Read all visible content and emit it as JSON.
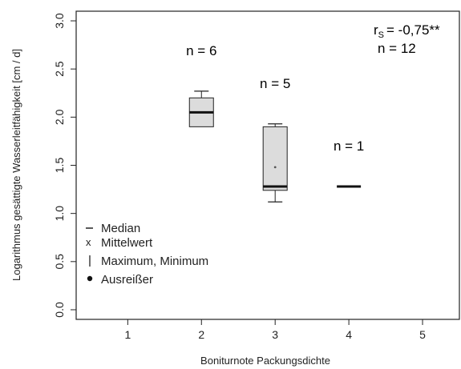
{
  "chart_data": {
    "type": "box",
    "xlabel": "Boniturnote Packungsdichte",
    "ylabel": "Logarithmus gesättigte Wasserleitfähigkeit [cm / d]",
    "xlim": [
      0.3,
      5.5
    ],
    "ylim": [
      -0.1,
      3.1
    ],
    "x_ticks": [
      "1",
      "2",
      "3",
      "4",
      "5"
    ],
    "y_ticks": [
      "0.0",
      "0.5",
      "1.0",
      "1.5",
      "2.0",
      "2.5",
      "3.0"
    ],
    "boxes": [
      {
        "x": 2,
        "min": 1.9,
        "q1": 1.9,
        "median": 2.05,
        "q3": 2.2,
        "max": 2.27,
        "mean": null,
        "n_label": "n = 6"
      },
      {
        "x": 3,
        "min": 1.12,
        "q1": 1.24,
        "median": 1.28,
        "q3": 1.9,
        "max": 1.93,
        "mean": 1.48,
        "n_label": "n = 5"
      },
      {
        "x": 4,
        "min": 1.28,
        "q1": 1.28,
        "median": 1.28,
        "q3": 1.28,
        "max": 1.28,
        "mean": null,
        "n_label": "n = 1"
      }
    ],
    "stats": {
      "rs_symbol": "r",
      "rs_sub": "S",
      "rs_value": "= -0,75**",
      "n_total": "n = 12"
    },
    "legend": {
      "position": "bottom-left",
      "items": [
        {
          "symbol": "line",
          "label": "Median"
        },
        {
          "symbol": "x",
          "label": "Mittelwert"
        },
        {
          "symbol": "bar",
          "label": "Maximum, Minimum"
        },
        {
          "symbol": "dot",
          "label": "Ausreißer"
        }
      ]
    },
    "colors": {
      "box_fill": "#dcdcdc",
      "stroke": "#222222"
    }
  }
}
